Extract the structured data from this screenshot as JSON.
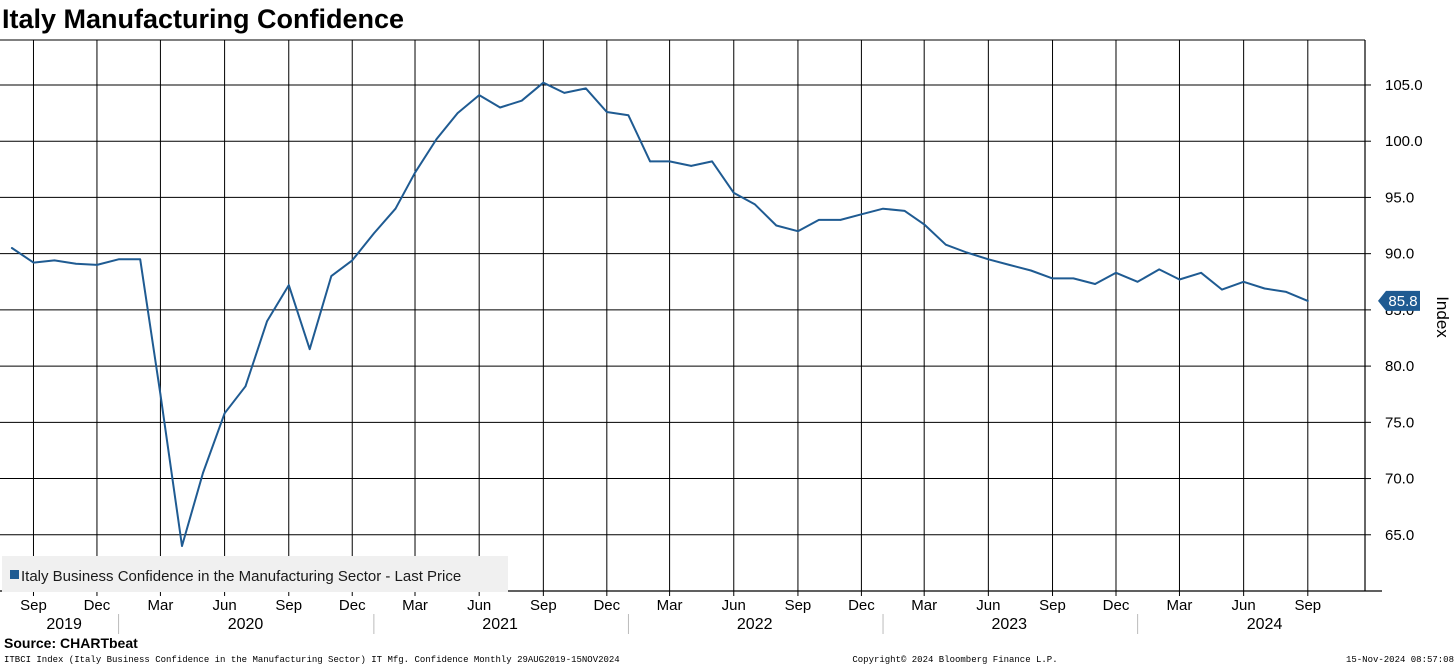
{
  "chart_data": {
    "type": "line",
    "title": "Italy Manufacturing Confidence",
    "ylabel": "Index",
    "ylim": [
      60,
      109
    ],
    "y_ticks": [
      65,
      70,
      75,
      80,
      85,
      90,
      95,
      100,
      105
    ],
    "y_tick_labels": [
      "65.0",
      "70.0",
      "75.0",
      "80.0",
      "85.0",
      "90.0",
      "95.0",
      "100.0",
      "105.0"
    ],
    "x_range": [
      "2019-07-15",
      "2024-11-22"
    ],
    "x_ticks": [
      {
        "date": "2019-09-01",
        "label": "Sep"
      },
      {
        "date": "2019-12-01",
        "label": "Dec"
      },
      {
        "date": "2020-03-01",
        "label": "Mar"
      },
      {
        "date": "2020-06-01",
        "label": "Jun"
      },
      {
        "date": "2020-09-01",
        "label": "Sep"
      },
      {
        "date": "2020-12-01",
        "label": "Dec"
      },
      {
        "date": "2021-03-01",
        "label": "Mar"
      },
      {
        "date": "2021-06-01",
        "label": "Jun"
      },
      {
        "date": "2021-09-01",
        "label": "Sep"
      },
      {
        "date": "2021-12-01",
        "label": "Dec"
      },
      {
        "date": "2022-03-01",
        "label": "Mar"
      },
      {
        "date": "2022-06-01",
        "label": "Jun"
      },
      {
        "date": "2022-09-01",
        "label": "Sep"
      },
      {
        "date": "2022-12-01",
        "label": "Dec"
      },
      {
        "date": "2023-03-01",
        "label": "Mar"
      },
      {
        "date": "2023-06-01",
        "label": "Jun"
      },
      {
        "date": "2023-09-01",
        "label": "Sep"
      },
      {
        "date": "2023-12-01",
        "label": "Dec"
      },
      {
        "date": "2024-03-01",
        "label": "Mar"
      },
      {
        "date": "2024-06-01",
        "label": "Jun"
      },
      {
        "date": "2024-09-01",
        "label": "Sep"
      }
    ],
    "year_labels": [
      {
        "date": "2019-10-15",
        "label": "2019"
      },
      {
        "date": "2020-07-01",
        "label": "2020"
      },
      {
        "date": "2021-07-01",
        "label": "2021"
      },
      {
        "date": "2022-07-01",
        "label": "2022"
      },
      {
        "date": "2023-07-01",
        "label": "2023"
      },
      {
        "date": "2024-07-01",
        "label": "2024"
      }
    ],
    "year_separators": [
      "2020-01-01",
      "2021-01-01",
      "2022-01-01",
      "2023-01-01",
      "2024-01-01"
    ],
    "grid": true,
    "legend_position": "bottom-left",
    "series": [
      {
        "name": "Italy Business Confidence in the Manufacturing Sector - Last Price",
        "color": "#1f5b92",
        "last_value_label": "85.8",
        "points": [
          {
            "date": "2019-08-01",
            "value": 90.5
          },
          {
            "date": "2019-09-01",
            "value": 89.2
          },
          {
            "date": "2019-10-01",
            "value": 89.4
          },
          {
            "date": "2019-11-01",
            "value": 89.1
          },
          {
            "date": "2019-12-01",
            "value": 89.0
          },
          {
            "date": "2020-01-01",
            "value": 89.5
          },
          {
            "date": "2020-02-01",
            "value": 89.5
          },
          {
            "date": "2020-03-01",
            "value": 77.5
          },
          {
            "date": "2020-04-01",
            "value": 64.0
          },
          {
            "date": "2020-05-01",
            "value": 70.5
          },
          {
            "date": "2020-06-01",
            "value": 75.8
          },
          {
            "date": "2020-07-01",
            "value": 78.2
          },
          {
            "date": "2020-08-01",
            "value": 84.0
          },
          {
            "date": "2020-09-01",
            "value": 87.2
          },
          {
            "date": "2020-10-01",
            "value": 81.5
          },
          {
            "date": "2020-11-01",
            "value": 88.0
          },
          {
            "date": "2020-12-01",
            "value": 89.4
          },
          {
            "date": "2021-01-01",
            "value": 91.8
          },
          {
            "date": "2021-02-01",
            "value": 94.0
          },
          {
            "date": "2021-03-01",
            "value": 97.2
          },
          {
            "date": "2021-04-01",
            "value": 100.2
          },
          {
            "date": "2021-05-01",
            "value": 102.5
          },
          {
            "date": "2021-06-01",
            "value": 104.1
          },
          {
            "date": "2021-07-01",
            "value": 103.0
          },
          {
            "date": "2021-08-01",
            "value": 103.6
          },
          {
            "date": "2021-09-01",
            "value": 105.2
          },
          {
            "date": "2021-10-01",
            "value": 104.3
          },
          {
            "date": "2021-11-01",
            "value": 104.7
          },
          {
            "date": "2021-12-01",
            "value": 102.6
          },
          {
            "date": "2022-01-01",
            "value": 102.3
          },
          {
            "date": "2022-02-01",
            "value": 98.2
          },
          {
            "date": "2022-03-01",
            "value": 98.2
          },
          {
            "date": "2022-04-01",
            "value": 97.8
          },
          {
            "date": "2022-05-01",
            "value": 98.2
          },
          {
            "date": "2022-06-01",
            "value": 95.4
          },
          {
            "date": "2022-07-01",
            "value": 94.4
          },
          {
            "date": "2022-08-01",
            "value": 92.5
          },
          {
            "date": "2022-09-01",
            "value": 92.0
          },
          {
            "date": "2022-10-01",
            "value": 93.0
          },
          {
            "date": "2022-11-01",
            "value": 93.0
          },
          {
            "date": "2022-12-01",
            "value": 93.5
          },
          {
            "date": "2023-01-01",
            "value": 94.0
          },
          {
            "date": "2023-02-01",
            "value": 93.8
          },
          {
            "date": "2023-03-01",
            "value": 92.6
          },
          {
            "date": "2023-04-01",
            "value": 90.8
          },
          {
            "date": "2023-05-01",
            "value": 90.1
          },
          {
            "date": "2023-06-01",
            "value": 89.5
          },
          {
            "date": "2023-07-01",
            "value": 89.0
          },
          {
            "date": "2023-08-01",
            "value": 88.5
          },
          {
            "date": "2023-09-01",
            "value": 87.8
          },
          {
            "date": "2023-10-01",
            "value": 87.8
          },
          {
            "date": "2023-11-01",
            "value": 87.3
          },
          {
            "date": "2023-12-01",
            "value": 88.3
          },
          {
            "date": "2024-01-01",
            "value": 87.5
          },
          {
            "date": "2024-02-01",
            "value": 88.6
          },
          {
            "date": "2024-03-01",
            "value": 87.7
          },
          {
            "date": "2024-04-01",
            "value": 88.3
          },
          {
            "date": "2024-05-01",
            "value": 86.8
          },
          {
            "date": "2024-06-01",
            "value": 87.5
          },
          {
            "date": "2024-07-01",
            "value": 86.9
          },
          {
            "date": "2024-08-01",
            "value": 86.6
          },
          {
            "date": "2024-09-01",
            "value": 85.8
          }
        ]
      }
    ],
    "source": "Source: CHARTbeat",
    "footer_left": "ITBCI Index (Italy Business Confidence in the Manufacturing Sector) IT Mfg. Confidence  Monthly 29AUG2019-15NOV2024",
    "footer_center": "Copyright© 2024 Bloomberg Finance L.P.",
    "footer_right": "15-Nov-2024 08:57:08"
  }
}
